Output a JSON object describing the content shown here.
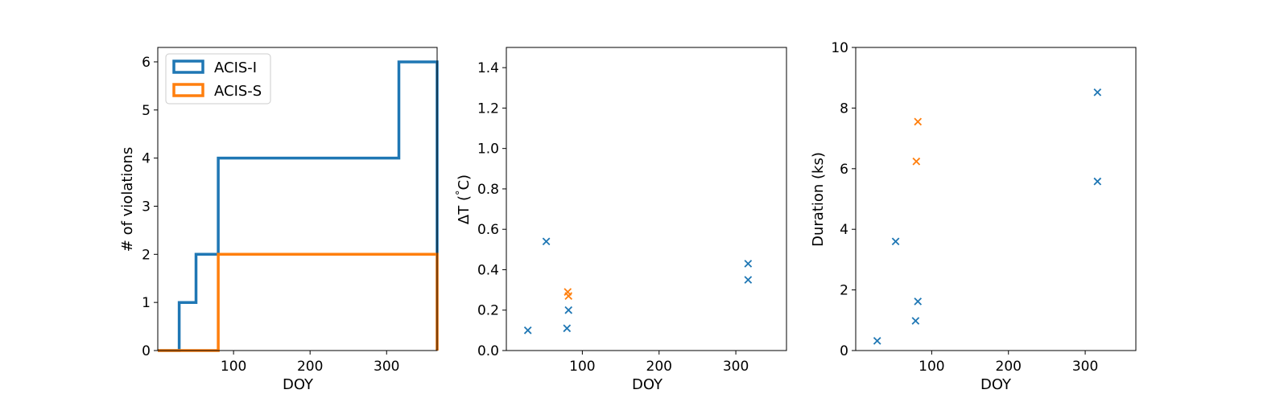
{
  "colors": {
    "acis_i": "#1f77b4",
    "acis_s": "#ff7f0e",
    "axes": "#000000",
    "background": "#ffffff"
  },
  "chart_data": [
    {
      "type": "line",
      "subtype": "cumulative-step-histogram",
      "title": "",
      "xlabel": "DOY",
      "ylabel": "# of violations",
      "xlim": [
        1,
        366
      ],
      "ylim": [
        0,
        6.3
      ],
      "xticks": [
        100,
        200,
        300
      ],
      "yticks": [
        0,
        1,
        2,
        3,
        4,
        5,
        6
      ],
      "grid": false,
      "legend": {
        "placement": "top-left",
        "entries": [
          "ACIS-I",
          "ACIS-S"
        ]
      },
      "series": [
        {
          "name": "ACIS-I",
          "color": "#1f77b4",
          "x": [
            1,
            29,
            29,
            51,
            51,
            80,
            80,
            316,
            316,
            366,
            366
          ],
          "y": [
            0,
            0,
            1,
            1,
            2,
            2,
            4,
            4,
            6,
            6,
            0
          ]
        },
        {
          "name": "ACIS-S",
          "color": "#ff7f0e",
          "x": [
            1,
            80,
            80,
            366,
            366
          ],
          "y": [
            0,
            0,
            2,
            2,
            0
          ]
        }
      ]
    },
    {
      "type": "scatter",
      "title": "",
      "xlabel": "DOY",
      "ylabel": "ΔT ($^\\circ$C)",
      "xlim": [
        1,
        366
      ],
      "ylim": [
        0,
        1.5
      ],
      "xticks": [
        100,
        200,
        300
      ],
      "yticks": [
        0.0,
        0.2,
        0.4,
        0.6,
        0.8,
        1.0,
        1.2,
        1.4
      ],
      "ytick_format": "1",
      "grid": false,
      "marker": "x",
      "series": [
        {
          "name": "ACIS-I",
          "color": "#1f77b4",
          "x": [
            29,
            53,
            80,
            82,
            316,
            316
          ],
          "y": [
            0.1,
            0.54,
            0.11,
            0.2,
            0.43,
            0.35
          ]
        },
        {
          "name": "ACIS-S",
          "color": "#ff7f0e",
          "x": [
            81,
            82
          ],
          "y": [
            0.29,
            0.27
          ]
        }
      ]
    },
    {
      "type": "scatter",
      "title": "",
      "xlabel": "DOY",
      "ylabel": "Duration (ks)",
      "xlim": [
        1,
        366
      ],
      "ylim": [
        0,
        10
      ],
      "xticks": [
        100,
        200,
        300
      ],
      "yticks": [
        0,
        2,
        4,
        6,
        8,
        10
      ],
      "ytick_format": "0",
      "grid": false,
      "marker": "x",
      "series": [
        {
          "name": "ACIS-I",
          "color": "#1f77b4",
          "x": [
            29,
            53,
            79,
            82,
            316,
            316
          ],
          "y": [
            0.32,
            3.6,
            0.98,
            1.62,
            8.52,
            5.58
          ]
        },
        {
          "name": "ACIS-S",
          "color": "#ff7f0e",
          "x": [
            80,
            82
          ],
          "y": [
            6.24,
            7.55
          ]
        }
      ]
    }
  ]
}
